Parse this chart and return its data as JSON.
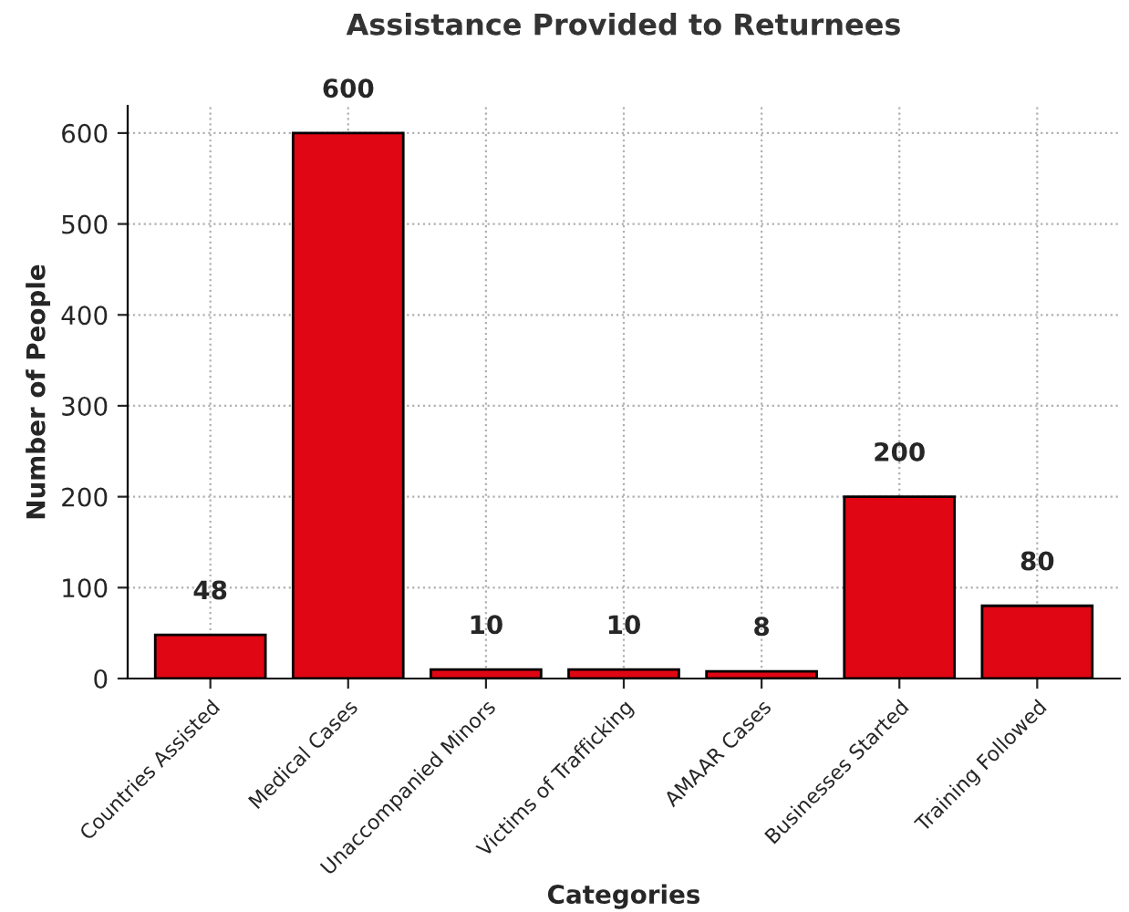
{
  "chart_data": {
    "type": "bar",
    "title": "Assistance Provided to Returnees",
    "xlabel": "Categories",
    "ylabel": "Number of People",
    "categories": [
      "Countries Assisted",
      "Medical Cases",
      "Unaccompanied Minors",
      "Victims of Trafficking",
      "AMAAR Cases",
      "Businesses Started",
      "Training Followed"
    ],
    "values": [
      48,
      600,
      10,
      10,
      8,
      200,
      80
    ],
    "color": "#e00613",
    "ylim": [
      0,
      630
    ],
    "yticks": [
      0,
      100,
      200,
      300,
      400,
      500,
      600
    ],
    "grid": true,
    "data_labels": true
  }
}
